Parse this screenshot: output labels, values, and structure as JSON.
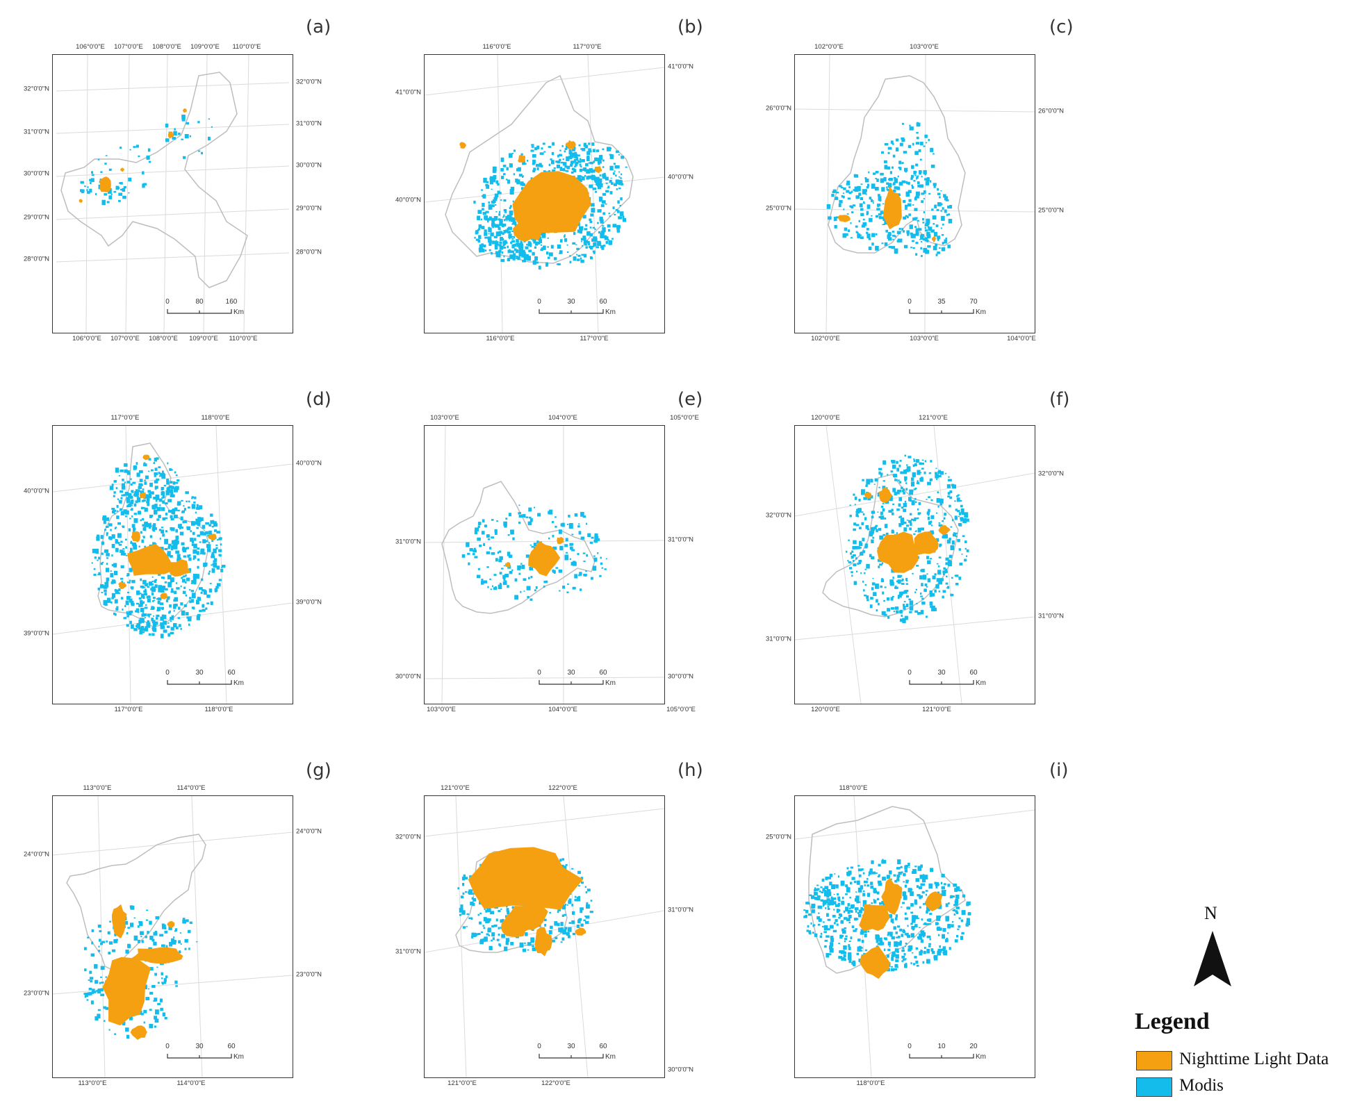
{
  "colors": {
    "nighttime": "#F5A011",
    "modis": "#13BCEB",
    "boundary": "#bdbdbd",
    "grid": "#dadada"
  },
  "panels": [
    {
      "label": "(a)",
      "top_ticks": [
        "106°0'0\"E",
        "107°0'0\"E",
        "108°0'0\"E",
        "109°0'0\"E",
        "110°0'0\"E"
      ],
      "bottom_ticks": [
        "106°0'0\"E",
        "107°0'0\"E",
        "108°0'0\"E",
        "109°0'0\"E",
        "110°0'0\"E"
      ],
      "left_ticks": [
        "32°0'0\"N",
        "31°0'0\"N",
        "30°0'0\"N",
        "29°0'0\"N",
        "28°0'0\"N"
      ],
      "right_ticks": [
        "32°0'0\"N",
        "31°0'0\"N",
        "30°0'0\"N",
        "29°0'0\"N",
        "28°0'0\"N"
      ],
      "scale": [
        "0",
        "80",
        "160"
      ],
      "unit": "Km"
    },
    {
      "label": "(b)",
      "top_ticks": [
        "116°0'0\"E",
        "117°0'0\"E"
      ],
      "bottom_ticks": [
        "116°0'0\"E",
        "117°0'0\"E"
      ],
      "left_ticks": [
        "41°0'0\"N",
        "40°0'0\"N"
      ],
      "right_ticks": [
        "41°0'0\"N",
        "40°0'0\"N"
      ],
      "scale": [
        "0",
        "30",
        "60"
      ],
      "unit": "Km"
    },
    {
      "label": "(c)",
      "top_ticks": [
        "102°0'0\"E",
        "103°0'0\"E"
      ],
      "bottom_ticks": [
        "102°0'0\"E",
        "103°0'0\"E",
        "104°0'0\"E"
      ],
      "left_ticks": [
        "26°0'0\"N",
        "25°0'0\"N"
      ],
      "right_ticks": [
        "26°0'0\"N",
        "25°0'0\"N"
      ],
      "scale": [
        "0",
        "35",
        "70"
      ],
      "unit": "Km"
    },
    {
      "label": "(d)",
      "top_ticks": [
        "117°0'0\"E",
        "118°0'0\"E"
      ],
      "bottom_ticks": [
        "117°0'0\"E",
        "118°0'0\"E"
      ],
      "left_ticks": [
        "40°0'0\"N",
        "39°0'0\"N"
      ],
      "right_ticks": [
        "40°0'0\"N",
        "39°0'0\"N"
      ],
      "scale": [
        "0",
        "30",
        "60"
      ],
      "unit": "Km"
    },
    {
      "label": "(e)",
      "top_ticks": [
        "103°0'0\"E",
        "104°0'0\"E",
        "105°0'0\"E"
      ],
      "bottom_ticks": [
        "103°0'0\"E",
        "104°0'0\"E",
        "105°0'0\"E"
      ],
      "left_ticks": [
        "31°0'0\"N",
        "30°0'0\"N"
      ],
      "right_ticks": [
        "31°0'0\"N",
        "30°0'0\"N"
      ],
      "scale": [
        "0",
        "30",
        "60"
      ],
      "unit": "Km"
    },
    {
      "label": "(f)",
      "top_ticks": [
        "120°0'0\"E",
        "121°0'0\"E"
      ],
      "bottom_ticks": [
        "120°0'0\"E",
        "121°0'0\"E"
      ],
      "left_ticks": [
        "32°0'0\"N",
        "31°0'0\"N"
      ],
      "right_ticks": [
        "32°0'0\"N",
        "31°0'0\"N"
      ],
      "scale": [
        "0",
        "30",
        "60"
      ],
      "unit": "Km"
    },
    {
      "label": "(g)",
      "top_ticks": [
        "113°0'0\"E",
        "114°0'0\"E"
      ],
      "bottom_ticks": [
        "113°0'0\"E",
        "114°0'0\"E"
      ],
      "left_ticks": [
        "24°0'0\"N",
        "23°0'0\"N"
      ],
      "right_ticks": [
        "24°0'0\"N",
        "23°0'0\"N"
      ],
      "scale": [
        "0",
        "30",
        "60"
      ],
      "unit": "Km"
    },
    {
      "label": "(h)",
      "top_ticks": [
        "121°0'0\"E",
        "122°0'0\"E"
      ],
      "bottom_ticks": [
        "121°0'0\"E",
        "122°0'0\"E"
      ],
      "left_ticks": [
        "32°0'0\"N",
        "31°0'0\"N"
      ],
      "right_ticks": [
        "31°0'0\"N",
        "30°0'0\"N"
      ],
      "scale": [
        "0",
        "30",
        "60"
      ],
      "unit": "Km"
    },
    {
      "label": "(i)",
      "top_ticks": [
        "118°0'0\"E"
      ],
      "bottom_ticks": [
        "118°0'0\"E"
      ],
      "left_ticks": [
        "25°0'0\"N"
      ],
      "right_ticks": [],
      "scale": [
        "0",
        "10",
        "20"
      ],
      "unit": "Km"
    }
  ],
  "legend": {
    "north": "N",
    "title": "Legend",
    "items": [
      {
        "label": "Nighttime Light Data",
        "color": "#F5A011"
      },
      {
        "label": "Modis",
        "color": "#13BCEB"
      }
    ]
  }
}
